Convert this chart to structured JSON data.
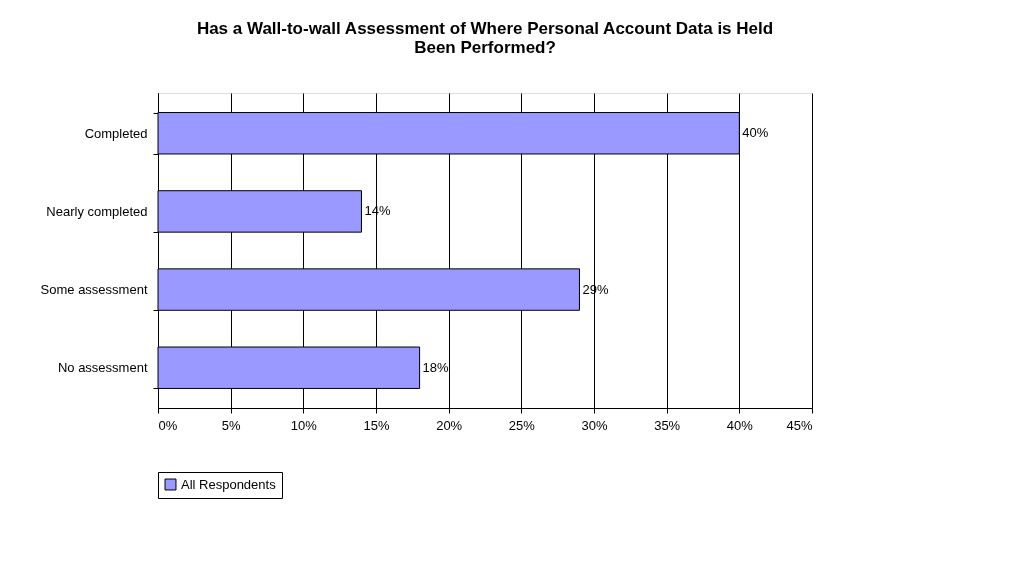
{
  "chart_data": {
    "type": "bar",
    "orientation": "horizontal",
    "title": "Has a Wall-to-wall Assessment of Where Personal Account Data is Held Been Performed?",
    "categories": [
      "Completed",
      "Nearly completed",
      "Some assessment",
      "No assessment"
    ],
    "series": [
      {
        "name": "All Respondents",
        "color": "#9999ff",
        "values": [
          40,
          14,
          29,
          18
        ],
        "value_labels": [
          "40%",
          "14%",
          "29%",
          "18%"
        ]
      }
    ],
    "xlim": [
      0,
      45
    ],
    "xticks": [
      {
        "value": 0,
        "label": "0%"
      },
      {
        "value": 5,
        "label": "5%"
      },
      {
        "value": 10,
        "label": "10%"
      },
      {
        "value": 15,
        "label": "15%"
      },
      {
        "value": 20,
        "label": "20%"
      },
      {
        "value": 25,
        "label": "25%"
      },
      {
        "value": 30,
        "label": "30%"
      },
      {
        "value": 35,
        "label": "35%"
      },
      {
        "value": 40,
        "label": "40%"
      },
      {
        "value": 45,
        "label": "45%"
      }
    ],
    "grid": "x",
    "legend": "bottom"
  }
}
